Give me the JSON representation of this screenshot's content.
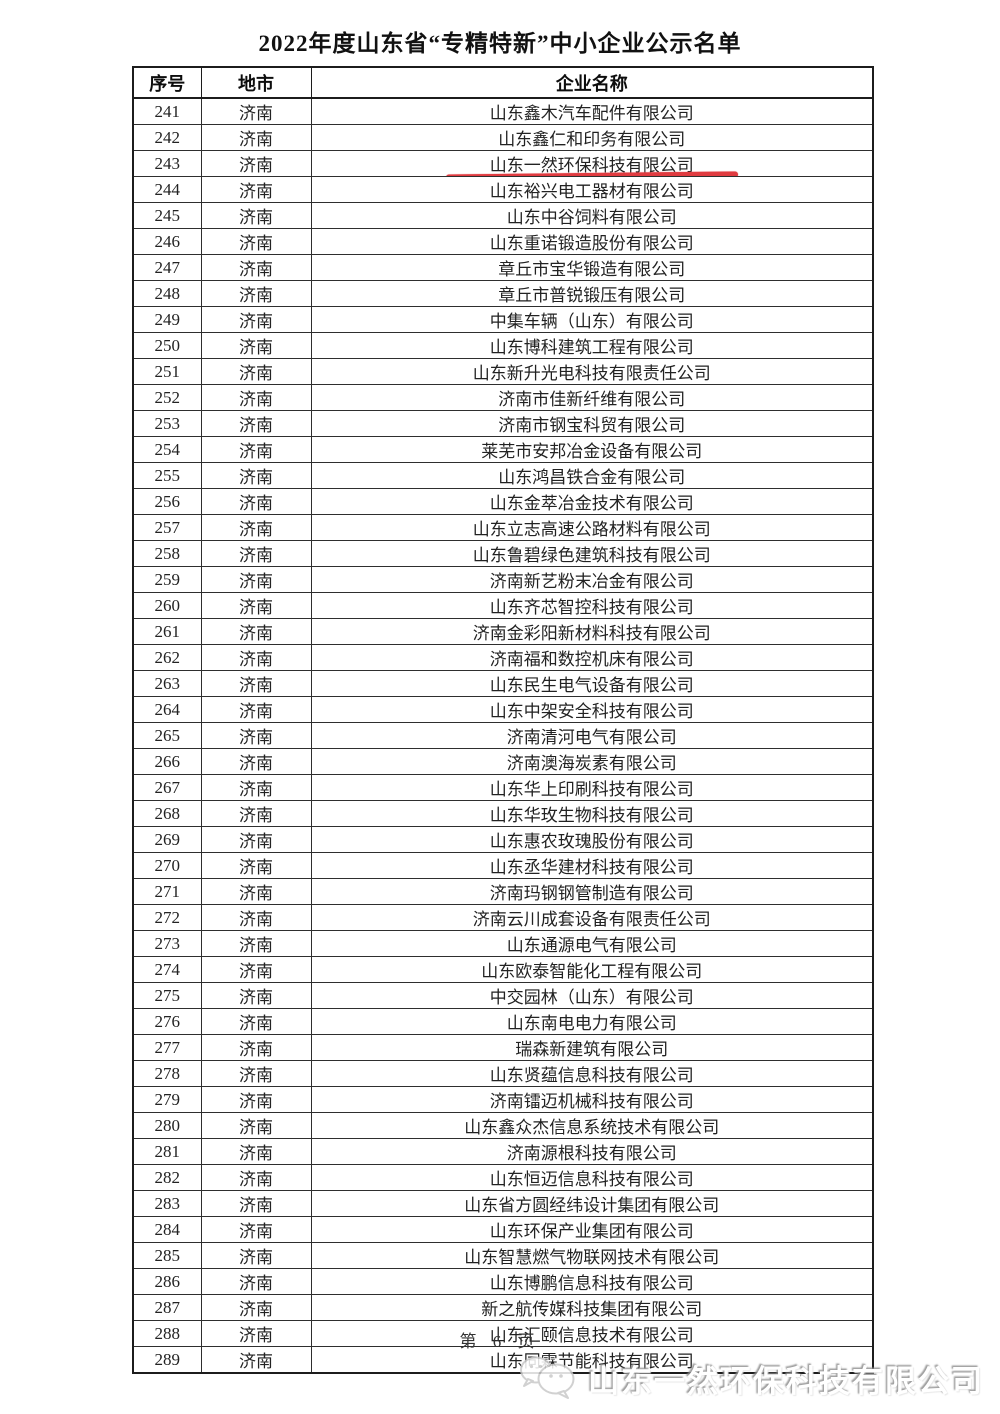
{
  "page": {
    "title": "2022年度山东省“专精特新”中小企业公示名单",
    "footer": "第 6 页"
  },
  "table": {
    "headers": [
      "序号",
      "地市",
      "企业名称"
    ],
    "highlight_row_no": "243",
    "rows": [
      {
        "no": "241",
        "city": "济南",
        "name": "山东鑫木汽车配件有限公司"
      },
      {
        "no": "242",
        "city": "济南",
        "name": "山东鑫仁和印务有限公司"
      },
      {
        "no": "243",
        "city": "济南",
        "name": "山东一然环保科技有限公司"
      },
      {
        "no": "244",
        "city": "济南",
        "name": "山东裕兴电工器材有限公司"
      },
      {
        "no": "245",
        "city": "济南",
        "name": "山东中谷饲料有限公司"
      },
      {
        "no": "246",
        "city": "济南",
        "name": "山东重诺锻造股份有限公司"
      },
      {
        "no": "247",
        "city": "济南",
        "name": "章丘市宝华锻造有限公司"
      },
      {
        "no": "248",
        "city": "济南",
        "name": "章丘市普锐锻压有限公司"
      },
      {
        "no": "249",
        "city": "济南",
        "name": "中集车辆（山东）有限公司"
      },
      {
        "no": "250",
        "city": "济南",
        "name": "山东博科建筑工程有限公司"
      },
      {
        "no": "251",
        "city": "济南",
        "name": "山东新升光电科技有限责任公司"
      },
      {
        "no": "252",
        "city": "济南",
        "name": "济南市佳新纤维有限公司"
      },
      {
        "no": "253",
        "city": "济南",
        "name": "济南市钢宝科贸有限公司"
      },
      {
        "no": "254",
        "city": "济南",
        "name": "莱芜市安邦冶金设备有限公司"
      },
      {
        "no": "255",
        "city": "济南",
        "name": "山东鸿昌铁合金有限公司"
      },
      {
        "no": "256",
        "city": "济南",
        "name": "山东金萃冶金技术有限公司"
      },
      {
        "no": "257",
        "city": "济南",
        "name": "山东立志高速公路材料有限公司"
      },
      {
        "no": "258",
        "city": "济南",
        "name": "山东鲁碧绿色建筑科技有限公司"
      },
      {
        "no": "259",
        "city": "济南",
        "name": "济南新艺粉末冶金有限公司"
      },
      {
        "no": "260",
        "city": "济南",
        "name": "山东齐芯智控科技有限公司"
      },
      {
        "no": "261",
        "city": "济南",
        "name": "济南金彩阳新材料科技有限公司"
      },
      {
        "no": "262",
        "city": "济南",
        "name": "济南福和数控机床有限公司"
      },
      {
        "no": "263",
        "city": "济南",
        "name": "山东民生电气设备有限公司"
      },
      {
        "no": "264",
        "city": "济南",
        "name": "山东中架安全科技有限公司"
      },
      {
        "no": "265",
        "city": "济南",
        "name": "济南清河电气有限公司"
      },
      {
        "no": "266",
        "city": "济南",
        "name": "济南澳海炭素有限公司"
      },
      {
        "no": "267",
        "city": "济南",
        "name": "山东华上印刷科技有限公司"
      },
      {
        "no": "268",
        "city": "济南",
        "name": "山东华玫生物科技有限公司"
      },
      {
        "no": "269",
        "city": "济南",
        "name": "山东惠农玫瑰股份有限公司"
      },
      {
        "no": "270",
        "city": "济南",
        "name": "山东丞华建材科技有限公司"
      },
      {
        "no": "271",
        "city": "济南",
        "name": "济南玛钢钢管制造有限公司"
      },
      {
        "no": "272",
        "city": "济南",
        "name": "济南云川成套设备有限责任公司"
      },
      {
        "no": "273",
        "city": "济南",
        "name": "山东通源电气有限公司"
      },
      {
        "no": "274",
        "city": "济南",
        "name": "山东欧泰智能化工程有限公司"
      },
      {
        "no": "275",
        "city": "济南",
        "name": "中交园林（山东）有限公司"
      },
      {
        "no": "276",
        "city": "济南",
        "name": "山东南电电力有限公司"
      },
      {
        "no": "277",
        "city": "济南",
        "name": "瑞森新建筑有限公司"
      },
      {
        "no": "278",
        "city": "济南",
        "name": "山东贤蕴信息科技有限公司"
      },
      {
        "no": "279",
        "city": "济南",
        "name": "济南镭迈机械科技有限公司"
      },
      {
        "no": "280",
        "city": "济南",
        "name": "山东鑫众杰信息系统技术有限公司"
      },
      {
        "no": "281",
        "city": "济南",
        "name": "济南源根科技有限公司"
      },
      {
        "no": "282",
        "city": "济南",
        "name": "山东恒迈信息科技有限公司"
      },
      {
        "no": "283",
        "city": "济南",
        "name": "山东省方圆经纬设计集团有限公司"
      },
      {
        "no": "284",
        "city": "济南",
        "name": "山东环保产业集团有限公司"
      },
      {
        "no": "285",
        "city": "济南",
        "name": "山东智慧燃气物联网技术有限公司"
      },
      {
        "no": "286",
        "city": "济南",
        "name": "山东博鹏信息科技有限公司"
      },
      {
        "no": "287",
        "city": "济南",
        "name": "新之航传媒科技集团有限公司"
      },
      {
        "no": "288",
        "city": "济南",
        "name": "山东汇颐信息技术有限公司"
      },
      {
        "no": "289",
        "city": "济南",
        "name": "山东同霖节能科技有限公司"
      }
    ]
  },
  "watermark": {
    "icon": "wechat-icon",
    "text": "山东一然环保科技有限公司"
  },
  "colors": {
    "highlight_line": "#e03b40",
    "border": "#2e2e2e",
    "text": "#222222",
    "watermark_gray": "#c9c9c9"
  }
}
